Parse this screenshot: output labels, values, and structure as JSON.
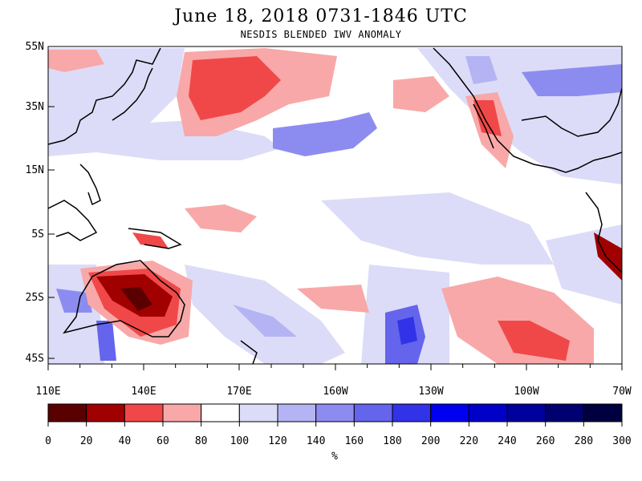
{
  "header": {
    "title": "June 18, 2018  0731-1846 UTC",
    "subtitle": "NESDIS BLENDED IWV ANOMALY"
  },
  "map": {
    "lat_labels": [
      "55N",
      "35N",
      "15N",
      "5S",
      "25S",
      "45S"
    ],
    "lon_labels": [
      "110E",
      "140E",
      "170E",
      "160W",
      "130W",
      "100W",
      "70W"
    ]
  },
  "colorbar": {
    "ticks": [
      "0",
      "20",
      "40",
      "60",
      "80",
      "100",
      "120",
      "140",
      "160",
      "180",
      "200",
      "220",
      "240",
      "260",
      "280",
      "300"
    ],
    "unit": "%",
    "colors": [
      "#5a0000",
      "#a00000",
      "#f04848",
      "#f8a8a8",
      "#ffffff",
      "#dcdcf8",
      "#b4b4f4",
      "#8c8cf0",
      "#6464ec",
      "#3232e8",
      "#0000f0",
      "#0000c8",
      "#00009c",
      "#000070",
      "#000040"
    ]
  }
}
